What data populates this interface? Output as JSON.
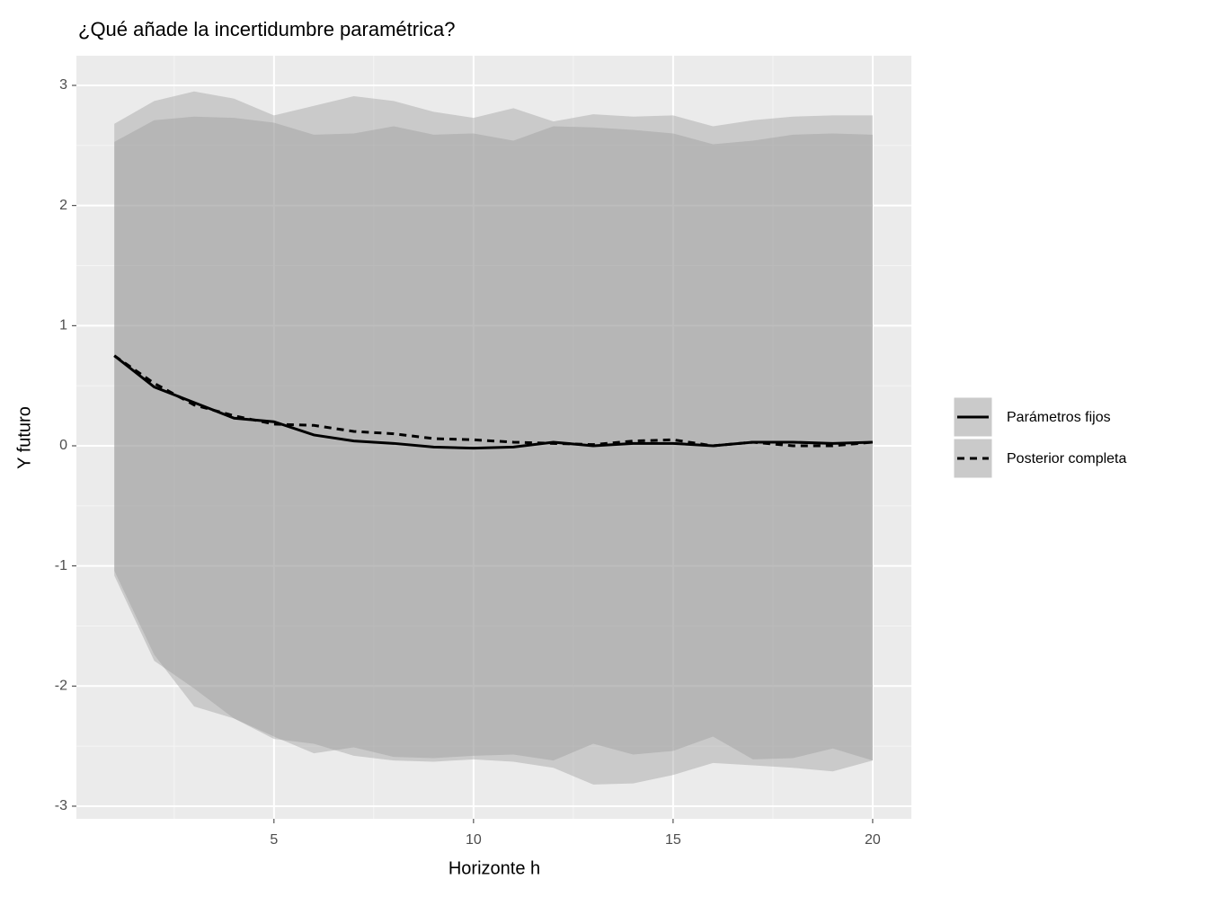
{
  "chart_data": {
    "type": "ribbon-line",
    "title": "¿Qué añade la incertidumbre paramétrica?",
    "x_label": "Horizonte h",
    "y_label": "Y futuro",
    "x": [
      1,
      2,
      3,
      4,
      5,
      6,
      7,
      8,
      9,
      10,
      11,
      12,
      13,
      14,
      15,
      16,
      17,
      18,
      19,
      20
    ],
    "series": [
      {
        "name": "Parámetros fijos",
        "color": "#000000",
        "fill": "#999999",
        "linetype": "solid",
        "values": [
          0.75,
          0.49,
          0.36,
          0.23,
          0.2,
          0.09,
          0.04,
          0.02,
          -0.01,
          -0.02,
          -0.01,
          0.03,
          0.0,
          0.02,
          0.02,
          0.0,
          0.03,
          0.03,
          0.02,
          0.03
        ],
        "upper": [
          2.53,
          2.71,
          2.74,
          2.73,
          2.69,
          2.59,
          2.6,
          2.66,
          2.59,
          2.6,
          2.54,
          2.66,
          2.65,
          2.63,
          2.6,
          2.51,
          2.54,
          2.59,
          2.6,
          2.59
        ],
        "lower": [
          -1.04,
          -1.74,
          -2.17,
          -2.27,
          -2.42,
          -2.56,
          -2.51,
          -2.59,
          -2.6,
          -2.58,
          -2.57,
          -2.62,
          -2.48,
          -2.57,
          -2.54,
          -2.42,
          -2.61,
          -2.6,
          -2.52,
          -2.62
        ]
      },
      {
        "name": "Posterior completa",
        "color": "#000000",
        "fill": "#999999",
        "linetype": "dashed",
        "values": [
          0.75,
          0.52,
          0.34,
          0.25,
          0.18,
          0.17,
          0.12,
          0.1,
          0.06,
          0.05,
          0.03,
          0.02,
          0.01,
          0.04,
          0.05,
          0.0,
          0.03,
          0.0,
          0.0,
          0.03
        ],
        "upper": [
          2.68,
          2.87,
          2.95,
          2.89,
          2.75,
          2.83,
          2.91,
          2.87,
          2.78,
          2.73,
          2.81,
          2.7,
          2.76,
          2.74,
          2.75,
          2.66,
          2.71,
          2.74,
          2.75,
          2.75
        ],
        "lower": [
          -1.08,
          -1.79,
          -2.02,
          -2.27,
          -2.44,
          -2.48,
          -2.58,
          -2.62,
          -2.63,
          -2.61,
          -2.63,
          -2.68,
          -2.82,
          -2.81,
          -2.74,
          -2.64,
          -2.66,
          -2.68,
          -2.71,
          -2.62
        ]
      }
    ],
    "xlim": [
      0.05,
      20.97
    ],
    "ylim": [
      -3.105,
      3.247
    ],
    "xticks": [
      5,
      10,
      15,
      20
    ],
    "yticks": [
      -3,
      -2,
      -1,
      0,
      1,
      2,
      3
    ],
    "grid": true,
    "legend": "right"
  }
}
